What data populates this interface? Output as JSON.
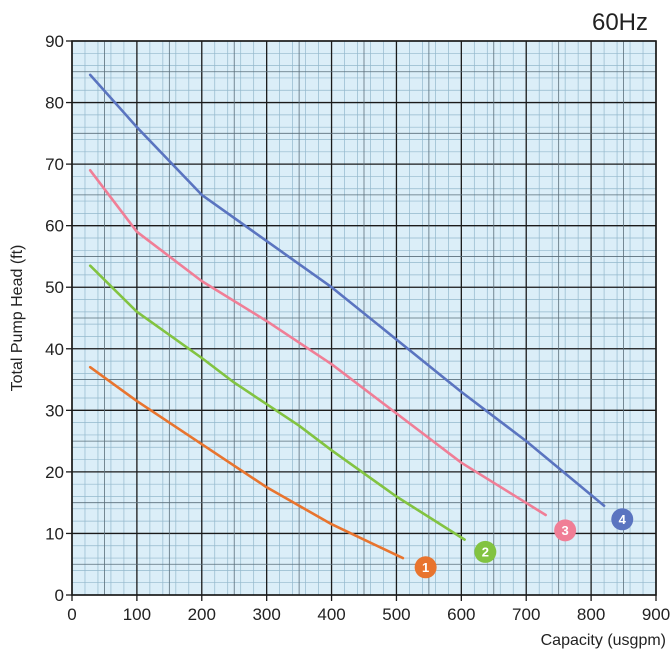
{
  "chart_data": {
    "type": "line",
    "title": "60Hz",
    "xlabel": "Capacity (usgpm)",
    "ylabel": "Total Pump Head (ft)",
    "xlim": [
      0,
      900
    ],
    "ylim": [
      0,
      90
    ],
    "x_ticks": [
      "0",
      "100",
      "200",
      "300",
      "400",
      "500",
      "600",
      "700",
      "800",
      "900"
    ],
    "y_ticks": [
      "0",
      "10",
      "20",
      "30",
      "40",
      "50",
      "60",
      "70",
      "80",
      "90"
    ],
    "grid": true,
    "background_color": "#dbeef8",
    "series": [
      {
        "name": "1",
        "color": "#e8742e",
        "points": [
          [
            28,
            37
          ],
          [
            100,
            31.5
          ],
          [
            200,
            24.5
          ],
          [
            300,
            17.5
          ],
          [
            400,
            11.5
          ],
          [
            510,
            6
          ]
        ]
      },
      {
        "name": "2",
        "color": "#82c341",
        "points": [
          [
            28,
            53.5
          ],
          [
            100,
            46
          ],
          [
            200,
            38.5
          ],
          [
            250,
            34.5
          ],
          [
            300,
            31
          ],
          [
            350,
            27.5
          ],
          [
            400,
            23.5
          ],
          [
            500,
            16
          ],
          [
            605,
            9
          ]
        ]
      },
      {
        "name": "3",
        "color": "#f07e96",
        "points": [
          [
            28,
            69
          ],
          [
            100,
            59
          ],
          [
            200,
            51
          ],
          [
            300,
            44.5
          ],
          [
            400,
            37.5
          ],
          [
            500,
            29.5
          ],
          [
            600,
            21.5
          ],
          [
            730,
            13
          ]
        ]
      },
      {
        "name": "4",
        "color": "#5a74c0",
        "points": [
          [
            28,
            84.5
          ],
          [
            100,
            76
          ],
          [
            200,
            65
          ],
          [
            300,
            57.5
          ],
          [
            400,
            50
          ],
          [
            500,
            41.5
          ],
          [
            600,
            33
          ],
          [
            700,
            25
          ],
          [
            820,
            14.5
          ]
        ]
      }
    ],
    "annotations": [
      {
        "text": "1",
        "x": 545,
        "y": 4.5,
        "color": "#e8742e"
      },
      {
        "text": "2",
        "x": 637,
        "y": 7,
        "color": "#82c341"
      },
      {
        "text": "3",
        "x": 760,
        "y": 10.5,
        "color": "#f07e96"
      },
      {
        "text": "4",
        "x": 848,
        "y": 12.3,
        "color": "#5a74c0"
      }
    ]
  }
}
